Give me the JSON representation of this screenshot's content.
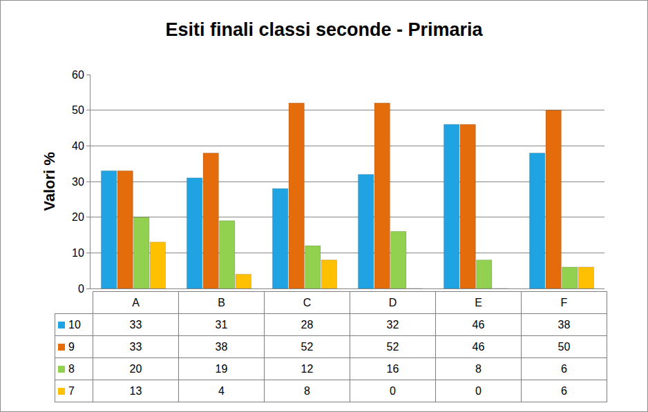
{
  "chart_data": {
    "type": "bar",
    "title": "Esiti finali classi seconde - Primaria",
    "y_label": "Valori %",
    "categories": [
      "A",
      "B",
      "C",
      "D",
      "E",
      "F"
    ],
    "series": [
      {
        "name": "10",
        "color": "#1FA3E2",
        "values": [
          33,
          31,
          28,
          32,
          46,
          38
        ]
      },
      {
        "name": "9",
        "color": "#E46C0A",
        "values": [
          33,
          38,
          52,
          52,
          46,
          50
        ]
      },
      {
        "name": "8",
        "color": "#92D050",
        "values": [
          20,
          19,
          12,
          16,
          8,
          6
        ]
      },
      {
        "name": "7",
        "color": "#FFC000",
        "values": [
          13,
          4,
          8,
          0,
          0,
          6
        ]
      }
    ],
    "ylim": [
      0,
      60
    ],
    "yticks": [
      0,
      10,
      20,
      30,
      40,
      50,
      60
    ],
    "grid": true
  }
}
